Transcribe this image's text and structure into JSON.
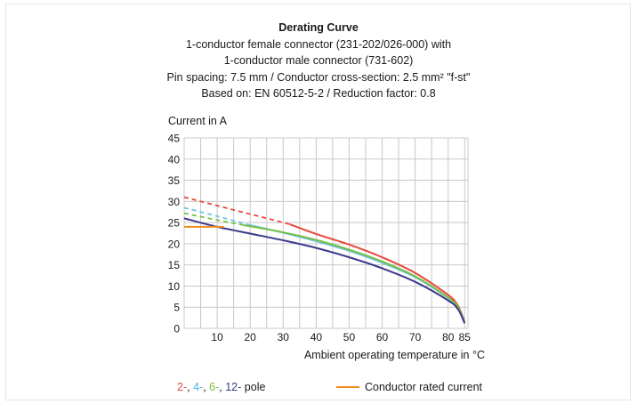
{
  "header": {
    "title": "Derating Curve",
    "line1": "1-conductor female connector (231-202/026-000) with",
    "line2": "1-conductor male connector (731-602)",
    "line3": "Pin spacing: 7.5 mm / Conductor cross-section: 2.5 mm² \"f-st\"",
    "line4": "Based on: EN 60512-5-2 / Reduction factor: 0.8"
  },
  "legend": {
    "pole_2": "2-",
    "sep1": ", ",
    "pole_4": "4-",
    "sep2": ", ",
    "pole_6": "6-",
    "sep3": ", ",
    "pole_12": "12-",
    "pole_suffix": " pole",
    "rated_current": "Conductor rated current"
  },
  "chart_data": {
    "type": "line",
    "ylabel": "Current in A",
    "xlabel": "Ambient operating temperature in °C",
    "xlim": [
      0,
      86
    ],
    "ylim": [
      0,
      45
    ],
    "x_ticks": [
      10,
      20,
      30,
      40,
      50,
      60,
      70,
      80,
      85
    ],
    "y_ticks": [
      0,
      5,
      10,
      15,
      20,
      25,
      30,
      35,
      40,
      45
    ],
    "grid": true,
    "colors": {
      "pole_2": "#e8473c",
      "pole_4": "#6fc2e6",
      "pole_6": "#78c043",
      "pole_12": "#3a3a8c",
      "rated": "#ee8c1c",
      "grid": "#c8c8c8"
    },
    "series": [
      {
        "name": "2-",
        "key": "pole_2",
        "dashed_until": 32,
        "points": [
          [
            0,
            31.0
          ],
          [
            10,
            29.0
          ],
          [
            20,
            27.0
          ],
          [
            32,
            24.6
          ],
          [
            40,
            22.3
          ],
          [
            50,
            19.8
          ],
          [
            60,
            16.8
          ],
          [
            70,
            13.1
          ],
          [
            80,
            7.9
          ],
          [
            83,
            5.3
          ],
          [
            85,
            1.5
          ]
        ]
      },
      {
        "name": "4-",
        "key": "pole_4",
        "dashed_until": 20,
        "points": [
          [
            0,
            28.5
          ],
          [
            10,
            26.5
          ],
          [
            20,
            24.4
          ],
          [
            30,
            22.6
          ],
          [
            40,
            20.6
          ],
          [
            50,
            18.3
          ],
          [
            60,
            15.5
          ],
          [
            70,
            12.1
          ],
          [
            80,
            7.2
          ],
          [
            83,
            5.0
          ],
          [
            85,
            1.3
          ]
        ]
      },
      {
        "name": "6-",
        "key": "pole_6",
        "dashed_until": 18,
        "points": [
          [
            0,
            27.2
          ],
          [
            10,
            25.6
          ],
          [
            18,
            24.4
          ],
          [
            30,
            22.7
          ],
          [
            40,
            20.9
          ],
          [
            50,
            18.6
          ],
          [
            60,
            15.8
          ],
          [
            70,
            12.3
          ],
          [
            80,
            7.3
          ],
          [
            83,
            5.0
          ],
          [
            85,
            1.3
          ]
        ]
      },
      {
        "name": "12-",
        "key": "pole_12",
        "dashed_until": 0,
        "points": [
          [
            0,
            26.0
          ],
          [
            10,
            24.0
          ],
          [
            20,
            22.4
          ],
          [
            30,
            20.8
          ],
          [
            40,
            19.0
          ],
          [
            50,
            16.8
          ],
          [
            60,
            14.2
          ],
          [
            70,
            11.0
          ],
          [
            80,
            6.6
          ],
          [
            83,
            4.5
          ],
          [
            85,
            1.2
          ]
        ]
      },
      {
        "name": "Conductor rated current",
        "key": "rated",
        "dashed_until": 0,
        "points": [
          [
            0,
            24.0
          ],
          [
            12,
            24.0
          ]
        ]
      }
    ]
  }
}
